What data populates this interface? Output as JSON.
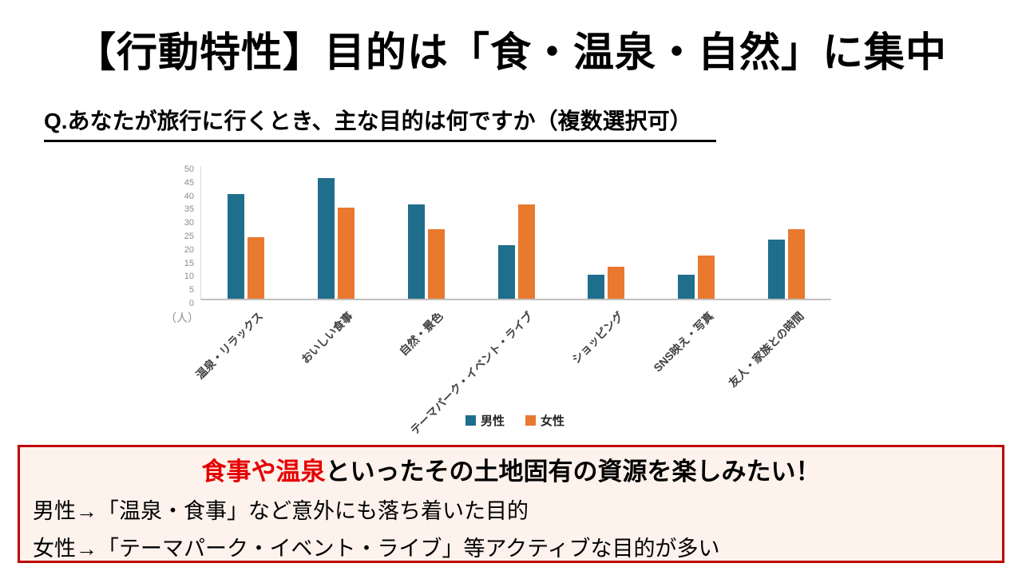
{
  "slide": {
    "title": "【行動特性】目的は「食・温泉・自然」に集中",
    "question": "Q.あなたが旅行に行くとき、主な目的は何ですか（複数選択可）"
  },
  "chart_data": {
    "type": "bar",
    "title": "",
    "unit_label": "（人）",
    "categories": [
      "温泉・リラックス",
      "おいしい食事",
      "自然・景色",
      "テーマパーク・イベント・ライブ",
      "ショッピング",
      "SNS映え・写真",
      "友人・家族との時間"
    ],
    "series": [
      {
        "name": "男性",
        "color": "#1f6e8c",
        "values": [
          39,
          45,
          35,
          20,
          9,
          9,
          22
        ]
      },
      {
        "name": "女性",
        "color": "#e8792f",
        "values": [
          23,
          34,
          26,
          35,
          12,
          16,
          26
        ]
      }
    ],
    "ylim": [
      0,
      50
    ],
    "ytick_step": 5,
    "grid": false,
    "legend_position": "bottom"
  },
  "takeaway": {
    "headline_highlight": "食事や温泉",
    "headline_rest": "といったその土地固有の資源を楽しみたい！",
    "line_male": "男性→「温泉・食事」など意外にも落ち着いた目的",
    "line_female": "女性→「テーマパーク・イベント・ライブ」等アクティブな目的が多い",
    "border_color": "#c00000",
    "highlight_color": "#e50000",
    "background": "#fdf2ec"
  }
}
